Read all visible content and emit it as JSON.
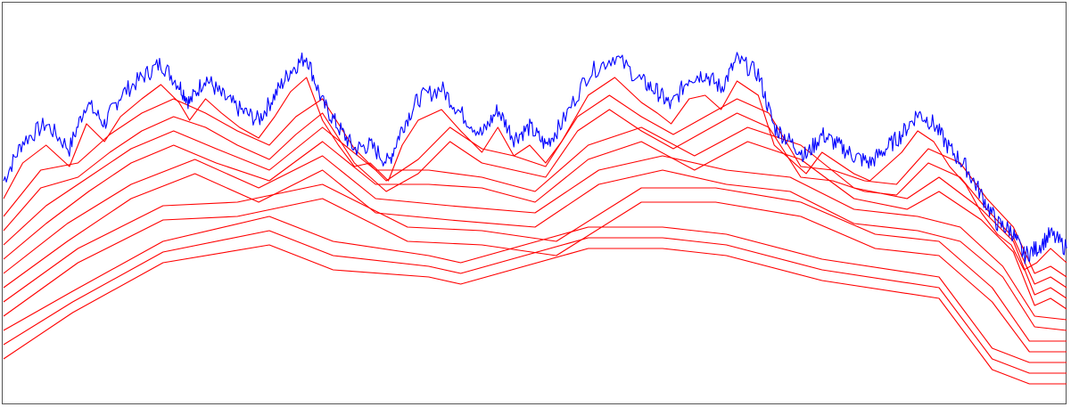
{
  "chart_data": {
    "type": "line",
    "title": "",
    "xlabel": "",
    "ylabel": "",
    "xlim": [
      0,
      1
    ],
    "ylim": [
      0,
      1
    ],
    "grid": false,
    "legend": "none",
    "colors": {
      "signal": "#0000ff",
      "smoothed": "#ff0000",
      "frame": "#555555"
    },
    "series": [
      {
        "role": "signal",
        "x": [
          0.0,
          0.018,
          0.04,
          0.062,
          0.078,
          0.095,
          0.11,
          0.13,
          0.148,
          0.165,
          0.175,
          0.19,
          0.205,
          0.222,
          0.24,
          0.255,
          0.27,
          0.285,
          0.3,
          0.315,
          0.33,
          0.345,
          0.362,
          0.375,
          0.39,
          0.412,
          0.43,
          0.45,
          0.465,
          0.48,
          0.495,
          0.51,
          0.525,
          0.55,
          0.575,
          0.6,
          0.615,
          0.628,
          0.645,
          0.66,
          0.675,
          0.69,
          0.71,
          0.725,
          0.74,
          0.755,
          0.77,
          0.785,
          0.8,
          0.815,
          0.83,
          0.845,
          0.86,
          0.875,
          0.89,
          0.905,
          0.92,
          0.935,
          0.948,
          0.96,
          0.972,
          0.985,
          1.0
        ],
        "y": [
          0.57,
          0.68,
          0.73,
          0.66,
          0.79,
          0.73,
          0.81,
          0.86,
          0.9,
          0.84,
          0.79,
          0.86,
          0.81,
          0.77,
          0.74,
          0.81,
          0.88,
          0.92,
          0.79,
          0.72,
          0.66,
          0.67,
          0.62,
          0.72,
          0.8,
          0.83,
          0.76,
          0.7,
          0.77,
          0.69,
          0.72,
          0.67,
          0.73,
          0.87,
          0.92,
          0.85,
          0.82,
          0.78,
          0.86,
          0.87,
          0.83,
          0.91,
          0.87,
          0.72,
          0.68,
          0.64,
          0.7,
          0.67,
          0.64,
          0.62,
          0.66,
          0.7,
          0.76,
          0.73,
          0.66,
          0.61,
          0.53,
          0.45,
          0.43,
          0.36,
          0.38,
          0.42,
          0.38
        ]
      },
      {
        "role": "smoothed",
        "x": [
          0.0,
          0.018,
          0.04,
          0.062,
          0.078,
          0.095,
          0.11,
          0.13,
          0.148,
          0.165,
          0.175,
          0.19,
          0.205,
          0.222,
          0.24,
          0.255,
          0.27,
          0.285,
          0.3,
          0.315,
          0.33,
          0.345,
          0.362,
          0.375,
          0.39,
          0.412,
          0.43,
          0.45,
          0.465,
          0.48,
          0.495,
          0.51,
          0.525,
          0.55,
          0.575,
          0.6,
          0.615,
          0.628,
          0.645,
          0.66,
          0.675,
          0.69,
          0.71,
          0.725,
          0.74,
          0.755,
          0.77,
          0.785,
          0.8,
          0.815,
          0.83,
          0.845,
          0.86,
          0.875,
          0.89,
          0.905,
          0.92,
          0.935,
          0.948,
          0.96,
          0.972,
          0.985,
          1.0
        ],
        "y": [
          0.52,
          0.62,
          0.67,
          0.61,
          0.73,
          0.68,
          0.75,
          0.8,
          0.84,
          0.79,
          0.74,
          0.8,
          0.76,
          0.72,
          0.69,
          0.75,
          0.82,
          0.86,
          0.74,
          0.67,
          0.61,
          0.62,
          0.57,
          0.67,
          0.74,
          0.77,
          0.71,
          0.65,
          0.72,
          0.64,
          0.67,
          0.62,
          0.68,
          0.81,
          0.86,
          0.79,
          0.76,
          0.73,
          0.8,
          0.81,
          0.77,
          0.85,
          0.81,
          0.67,
          0.63,
          0.59,
          0.65,
          0.62,
          0.59,
          0.57,
          0.61,
          0.65,
          0.71,
          0.68,
          0.61,
          0.56,
          0.48,
          0.42,
          0.39,
          0.32,
          0.34,
          0.38,
          0.34
        ]
      },
      {
        "role": "smoothed",
        "x": [
          0.0,
          0.035,
          0.07,
          0.1,
          0.13,
          0.16,
          0.19,
          0.22,
          0.25,
          0.275,
          0.3,
          0.33,
          0.36,
          0.39,
          0.42,
          0.45,
          0.48,
          0.51,
          0.54,
          0.57,
          0.6,
          0.63,
          0.66,
          0.69,
          0.72,
          0.75,
          0.78,
          0.81,
          0.84,
          0.87,
          0.9,
          0.925,
          0.95,
          0.97,
          0.985,
          1.0
        ],
        "y": [
          0.47,
          0.6,
          0.62,
          0.7,
          0.76,
          0.8,
          0.76,
          0.71,
          0.67,
          0.75,
          0.8,
          0.66,
          0.57,
          0.63,
          0.72,
          0.66,
          0.64,
          0.61,
          0.75,
          0.81,
          0.75,
          0.7,
          0.75,
          0.8,
          0.76,
          0.61,
          0.6,
          0.57,
          0.56,
          0.66,
          0.62,
          0.52,
          0.44,
          0.31,
          0.33,
          0.3
        ]
      },
      {
        "role": "smoothed",
        "x": [
          0.0,
          0.035,
          0.07,
          0.1,
          0.13,
          0.16,
          0.19,
          0.22,
          0.25,
          0.275,
          0.3,
          0.33,
          0.36,
          0.39,
          0.42,
          0.45,
          0.48,
          0.51,
          0.54,
          0.57,
          0.6,
          0.63,
          0.66,
          0.69,
          0.72,
          0.75,
          0.78,
          0.81,
          0.84,
          0.87,
          0.9,
          0.925,
          0.95,
          0.97,
          0.985,
          1.0
        ],
        "y": [
          0.43,
          0.55,
          0.58,
          0.65,
          0.71,
          0.75,
          0.72,
          0.67,
          0.63,
          0.7,
          0.76,
          0.62,
          0.54,
          0.59,
          0.68,
          0.62,
          0.6,
          0.58,
          0.71,
          0.77,
          0.71,
          0.66,
          0.71,
          0.76,
          0.72,
          0.58,
          0.57,
          0.54,
          0.53,
          0.62,
          0.58,
          0.49,
          0.41,
          0.28,
          0.3,
          0.27
        ]
      },
      {
        "role": "smoothed",
        "x": [
          0.0,
          0.04,
          0.08,
          0.12,
          0.16,
          0.2,
          0.25,
          0.3,
          0.35,
          0.4,
          0.45,
          0.5,
          0.55,
          0.6,
          0.65,
          0.7,
          0.75,
          0.8,
          0.85,
          0.88,
          0.92,
          0.95,
          0.97,
          0.985,
          1.0
        ],
        "y": [
          0.39,
          0.5,
          0.58,
          0.66,
          0.71,
          0.66,
          0.6,
          0.72,
          0.6,
          0.6,
          0.58,
          0.54,
          0.67,
          0.72,
          0.64,
          0.72,
          0.67,
          0.55,
          0.52,
          0.58,
          0.49,
          0.4,
          0.25,
          0.27,
          0.24
        ]
      },
      {
        "role": "smoothed",
        "x": [
          0.0,
          0.04,
          0.08,
          0.12,
          0.16,
          0.2,
          0.25,
          0.3,
          0.35,
          0.4,
          0.45,
          0.5,
          0.55,
          0.6,
          0.65,
          0.7,
          0.75,
          0.8,
          0.85,
          0.88,
          0.92,
          0.95,
          0.97,
          0.985,
          1.0
        ],
        "y": [
          0.35,
          0.45,
          0.54,
          0.62,
          0.67,
          0.62,
          0.57,
          0.68,
          0.56,
          0.56,
          0.55,
          0.51,
          0.63,
          0.68,
          0.6,
          0.68,
          0.63,
          0.52,
          0.49,
          0.54,
          0.46,
          0.37,
          0.22,
          0.24,
          0.21
        ]
      },
      {
        "role": "smoothed",
        "x": [
          0.0,
          0.06,
          0.12,
          0.18,
          0.24,
          0.3,
          0.35,
          0.42,
          0.5,
          0.56,
          0.62,
          0.68,
          0.74,
          0.8,
          0.86,
          0.9,
          0.94,
          0.97,
          1.0
        ],
        "y": [
          0.31,
          0.45,
          0.56,
          0.63,
          0.55,
          0.64,
          0.52,
          0.5,
          0.48,
          0.6,
          0.64,
          0.6,
          0.58,
          0.49,
          0.47,
          0.44,
          0.33,
          0.19,
          0.18
        ]
      },
      {
        "role": "smoothed",
        "x": [
          0.0,
          0.06,
          0.12,
          0.18,
          0.24,
          0.3,
          0.35,
          0.42,
          0.5,
          0.56,
          0.62,
          0.68,
          0.74,
          0.8,
          0.86,
          0.9,
          0.94,
          0.97,
          1.0
        ],
        "y": [
          0.27,
          0.4,
          0.52,
          0.59,
          0.51,
          0.6,
          0.48,
          0.46,
          0.44,
          0.56,
          0.6,
          0.56,
          0.54,
          0.45,
          0.43,
          0.4,
          0.3,
          0.16,
          0.15
        ]
      },
      {
        "role": "smoothed",
        "x": [
          0.0,
          0.07,
          0.15,
          0.22,
          0.3,
          0.38,
          0.45,
          0.52,
          0.6,
          0.67,
          0.75,
          0.82,
          0.88,
          0.93,
          0.965,
          1.0
        ],
        "y": [
          0.23,
          0.38,
          0.5,
          0.51,
          0.56,
          0.44,
          0.43,
          0.4,
          0.55,
          0.55,
          0.51,
          0.42,
          0.4,
          0.27,
          0.12,
          0.12
        ]
      },
      {
        "role": "smoothed",
        "x": [
          0.0,
          0.07,
          0.15,
          0.22,
          0.3,
          0.38,
          0.45,
          0.52,
          0.6,
          0.67,
          0.75,
          0.82,
          0.88,
          0.93,
          0.965,
          1.0
        ],
        "y": [
          0.19,
          0.34,
          0.46,
          0.47,
          0.52,
          0.4,
          0.39,
          0.36,
          0.51,
          0.51,
          0.47,
          0.38,
          0.36,
          0.23,
          0.09,
          0.09
        ]
      },
      {
        "role": "smoothed",
        "x": [
          0.0,
          0.065,
          0.15,
          0.25,
          0.31,
          0.4,
          0.43,
          0.55,
          0.62,
          0.68,
          0.77,
          0.88,
          0.93,
          0.965,
          1.0
        ],
        "y": [
          0.15,
          0.26,
          0.4,
          0.47,
          0.4,
          0.36,
          0.34,
          0.44,
          0.44,
          0.42,
          0.35,
          0.3,
          0.1,
          0.06,
          0.06
        ]
      },
      {
        "role": "smoothed",
        "x": [
          0.0,
          0.065,
          0.15,
          0.25,
          0.31,
          0.4,
          0.43,
          0.55,
          0.62,
          0.68,
          0.77,
          0.88,
          0.93,
          0.965,
          1.0
        ],
        "y": [
          0.11,
          0.23,
          0.37,
          0.43,
          0.36,
          0.33,
          0.31,
          0.41,
          0.41,
          0.39,
          0.32,
          0.27,
          0.07,
          0.03,
          0.03
        ]
      },
      {
        "role": "smoothed",
        "x": [
          0.0,
          0.065,
          0.15,
          0.25,
          0.31,
          0.4,
          0.43,
          0.55,
          0.62,
          0.68,
          0.77,
          0.88,
          0.93,
          0.965,
          1.0
        ],
        "y": [
          0.07,
          0.2,
          0.34,
          0.39,
          0.32,
          0.3,
          0.28,
          0.38,
          0.38,
          0.36,
          0.29,
          0.24,
          0.04,
          0.0,
          0.0
        ]
      }
    ]
  }
}
